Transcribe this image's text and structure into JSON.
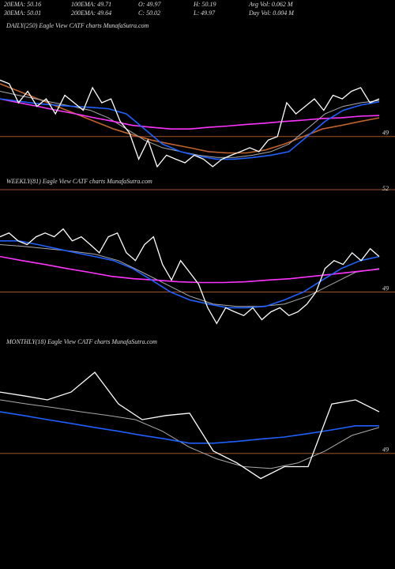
{
  "header": {
    "rows": [
      [
        "20EMA: 50.16",
        "100EMA: 49.71",
        "O: 49.97",
        "H: 50.19",
        "Avg Vol: 0.062 M"
      ],
      [
        "30EMA: 50.01",
        "200EMA: 49.64",
        "C: 50.02",
        "L: 49.97",
        "Day Vol: 0.004 M"
      ]
    ]
  },
  "chart_data": [
    {
      "type": "line",
      "title": "DAILY(250) Eagle  View  CATF charts MunafaSutra.com",
      "ylim": [
        47.5,
        52.2
      ],
      "yticks": [
        49
      ],
      "ref_color": "#a0522d",
      "series": [
        {
          "color": "#c0622b",
          "values": [
            50.61,
            50.38,
            50.15,
            49.92,
            49.69,
            49.46,
            49.23,
            49.05,
            48.89,
            48.77,
            48.66,
            48.54,
            48.5,
            48.5,
            48.59,
            48.77,
            49.0,
            49.23,
            49.34,
            49.46,
            49.57
          ]
        },
        {
          "color": "#aaaaaa",
          "values": [
            50.38,
            50.26,
            50.15,
            50.03,
            49.92,
            49.8,
            49.57,
            49.23,
            48.89,
            48.66,
            48.54,
            48.43,
            48.36,
            48.36,
            48.43,
            48.54,
            48.77,
            49.23,
            49.69,
            49.92,
            50.03,
            50.1
          ]
        },
        {
          "color": "#ff33ff",
          "values": [
            50.15,
            50.03,
            49.92,
            49.8,
            49.69,
            49.57,
            49.46,
            49.34,
            49.28,
            49.23,
            49.23,
            49.28,
            49.32,
            49.37,
            49.41,
            49.46,
            49.5,
            49.55,
            49.57,
            49.62,
            49.64
          ]
        },
        {
          "color": "#2060ff",
          "values": [
            50.15,
            50.08,
            50.01,
            49.96,
            49.92,
            49.89,
            49.85,
            49.69,
            49.23,
            48.77,
            48.54,
            48.4,
            48.31,
            48.31,
            48.36,
            48.43,
            48.54,
            49.0,
            49.46,
            49.8,
            49.96,
            50.06
          ]
        },
        {
          "color": "#ffffff",
          "values": [
            50.72,
            50.61,
            50.03,
            50.38,
            49.92,
            50.15,
            49.69,
            50.26,
            50.03,
            49.8,
            50.49,
            50.03,
            50.15,
            49.46,
            49.11,
            48.31,
            48.89,
            48.08,
            48.43,
            48.31,
            48.2,
            48.43,
            48.31,
            48.08,
            48.31,
            48.43,
            48.54,
            48.66,
            48.54,
            48.89,
            49.0,
            50.03,
            49.69,
            49.92,
            50.15,
            49.8,
            50.26,
            50.15,
            50.38,
            50.49,
            50.03,
            50.15
          ]
        }
      ]
    },
    {
      "type": "line",
      "title": "WEEKLY(81) Eagle  View  CATF charts MunafaSutra.com",
      "ylim": [
        47.6,
        52
      ],
      "yticks": [
        49,
        52
      ],
      "ref_color": "#a0522d",
      "series": [
        {
          "color": "#aaaaaa",
          "values": [
            50.39,
            50.34,
            50.27,
            50.2,
            50.11,
            49.92,
            49.58,
            49.23,
            48.88,
            48.65,
            48.58,
            48.58,
            48.65,
            48.88,
            49.23,
            49.58,
            49.69
          ]
        },
        {
          "color": "#ff33ff",
          "values": [
            50.04,
            49.92,
            49.81,
            49.69,
            49.58,
            49.46,
            49.39,
            49.35,
            49.3,
            49.28,
            49.28,
            49.3,
            49.35,
            49.39,
            49.46,
            49.53,
            49.6,
            49.67
          ]
        },
        {
          "color": "#2060ff",
          "values": [
            50.5,
            50.5,
            50.39,
            50.27,
            50.15,
            50.04,
            49.92,
            49.69,
            49.35,
            49.0,
            48.77,
            48.65,
            48.54,
            48.54,
            48.58,
            48.77,
            49.0,
            49.35,
            49.69,
            49.92,
            50.04
          ]
        },
        {
          "color": "#ffffff",
          "values": [
            50.62,
            50.73,
            50.5,
            50.39,
            50.62,
            50.73,
            50.62,
            50.85,
            50.5,
            50.62,
            50.39,
            50.15,
            50.62,
            50.73,
            50.15,
            49.92,
            50.39,
            50.62,
            49.81,
            49.35,
            49.92,
            49.58,
            49.23,
            48.54,
            48.08,
            48.54,
            48.42,
            48.31,
            48.54,
            48.19,
            48.42,
            48.54,
            48.31,
            48.42,
            48.65,
            49.0,
            49.69,
            49.92,
            49.81,
            50.15,
            49.92,
            50.27,
            50.04
          ]
        }
      ]
    },
    {
      "type": "line",
      "title": "MONTHLY(18) Eagle  View  CATF charts MunafaSutra.com",
      "ylim": [
        47,
        52.1
      ],
      "yticks": [
        49
      ],
      "ref_color": "#a0522d",
      "series": [
        {
          "color": "#aaaaaa",
          "values": [
            50.57,
            50.45,
            50.34,
            50.22,
            50.11,
            49.99,
            49.65,
            49.18,
            48.84,
            48.61,
            48.56,
            48.72,
            49.07,
            49.53,
            49.76
          ]
        },
        {
          "color": "#2060ff",
          "values": [
            50.22,
            50.11,
            49.99,
            49.88,
            49.76,
            49.65,
            49.53,
            49.42,
            49.3,
            49.3,
            49.35,
            49.42,
            49.48,
            49.58,
            49.69,
            49.81,
            49.81
          ]
        },
        {
          "color": "#ffffff",
          "values": [
            50.8,
            50.69,
            50.57,
            50.8,
            51.38,
            50.45,
            49.99,
            50.11,
            50.18,
            49.07,
            48.72,
            48.26,
            48.61,
            48.61,
            50.45,
            50.57,
            50.22
          ]
        }
      ]
    }
  ]
}
